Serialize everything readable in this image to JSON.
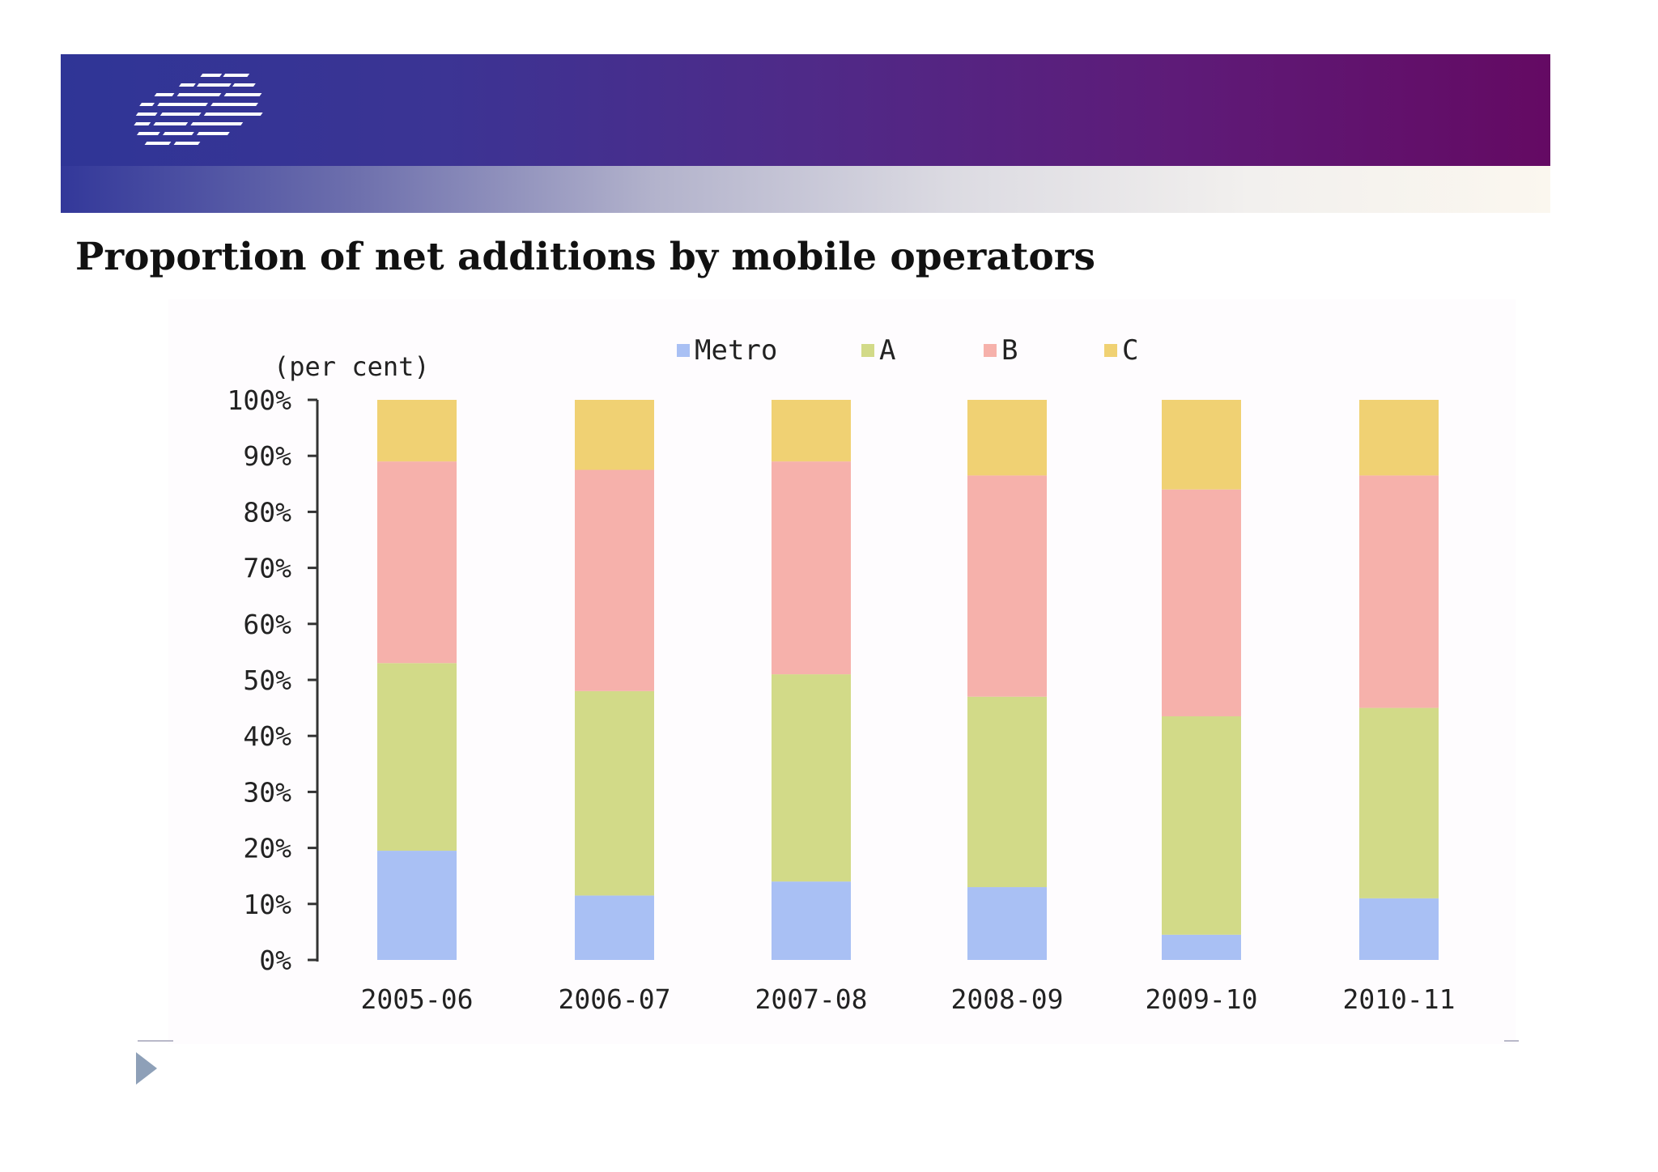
{
  "slide": {
    "title": "Proportion of net additions by mobile operators"
  },
  "colors": {
    "banner_left": "#2f3596",
    "banner_right": "#640a63",
    "bullet": "#8ea0b8"
  },
  "chart_data": {
    "type": "bar",
    "stacked": true,
    "title": "",
    "xlabel": "",
    "ylabel": "(per cent)",
    "ylim": [
      0,
      100
    ],
    "yticks": [
      "0%",
      "10%",
      "20%",
      "30%",
      "40%",
      "50%",
      "60%",
      "70%",
      "80%",
      "90%",
      "100%"
    ],
    "categories": [
      "2005-06",
      "2006-07",
      "2007-08",
      "2008-09",
      "2009-10",
      "2010-11"
    ],
    "legend_position": "top",
    "grid": false,
    "series": [
      {
        "name": "Metro",
        "color": "#a9c0f4",
        "values": [
          19.5,
          11.5,
          14,
          13,
          4.5,
          11
        ]
      },
      {
        "name": "A",
        "color": "#d2da88",
        "values": [
          33.5,
          36.5,
          37,
          34,
          39,
          34
        ]
      },
      {
        "name": "B",
        "color": "#f6b1ab",
        "values": [
          36,
          39.5,
          38,
          39.5,
          40.5,
          41.5
        ]
      },
      {
        "name": "C",
        "color": "#f0d173",
        "values": [
          11,
          12.5,
          11,
          13.5,
          16,
          13.5
        ]
      }
    ]
  }
}
